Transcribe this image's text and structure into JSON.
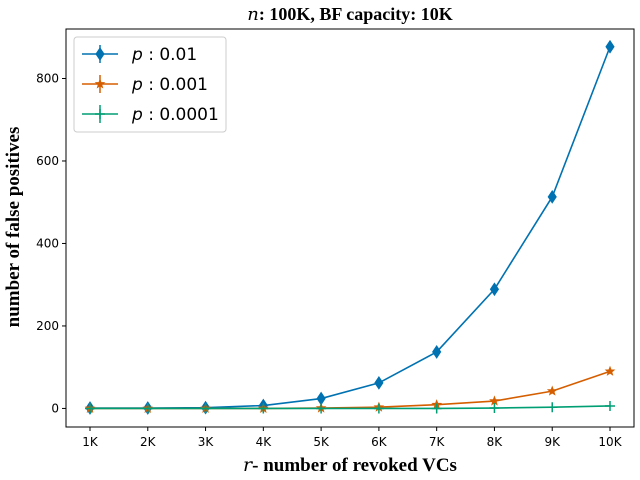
{
  "chart_data": {
    "type": "line",
    "title_var": "n",
    "title_rest": ": 100K, BF capacity: 10K",
    "xlabel_var": "r",
    "xlabel_rest": "- number of revoked VCs",
    "ylabel": "number of false positives",
    "categories": [
      "1K",
      "2K",
      "3K",
      "4K",
      "5K",
      "6K",
      "7K",
      "8K",
      "9K",
      "10K"
    ],
    "ylim": [
      -45,
      920
    ],
    "yticks": [
      0,
      200,
      400,
      600,
      800
    ],
    "legend_position": "top-left",
    "grid": false,
    "series": [
      {
        "name": "0.01",
        "legend_prefix": "p",
        "color": "#0072B2",
        "marker": "diamond",
        "values": [
          1,
          1,
          2,
          7,
          24,
          62,
          137,
          289,
          513,
          877
        ],
        "errors": [
          1,
          1,
          1,
          2,
          3,
          5,
          7,
          9,
          11,
          14
        ]
      },
      {
        "name": "0.001",
        "legend_prefix": "p",
        "color": "#D55E00",
        "marker": "star",
        "values": [
          0,
          0,
          0,
          0,
          1,
          3,
          9,
          18,
          42,
          90
        ],
        "errors": [
          0,
          0,
          0,
          0,
          1,
          1,
          1,
          2,
          2,
          3
        ]
      },
      {
        "name": "0.0001",
        "legend_prefix": "p",
        "color": "#009E73",
        "marker": "plus",
        "values": [
          0,
          0,
          0,
          0,
          0,
          0,
          0,
          1,
          3,
          6
        ],
        "errors": [
          0,
          0,
          0,
          0,
          0,
          0,
          0,
          0,
          1,
          1
        ]
      }
    ]
  }
}
